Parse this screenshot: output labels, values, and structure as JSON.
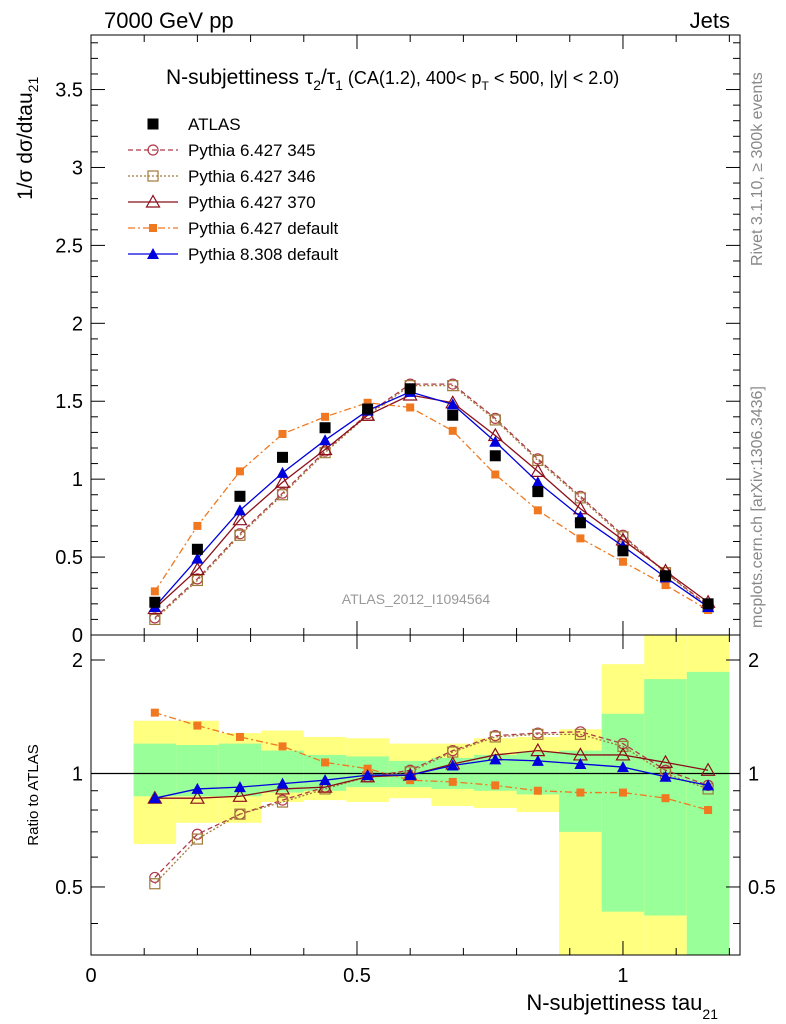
{
  "header": {
    "left": "7000 GeV pp",
    "right": "Jets"
  },
  "side_labels": {
    "rivet": "Rivet 3.1.10, ≥ 300k events",
    "mcplots": "mcplots.cern.ch [arXiv:1306.3436]"
  },
  "chart_data": [
    {
      "type": "line",
      "panel": "main",
      "title": {
        "main": "N-subjettiness τ",
        "tau2_sub": "2",
        "slash": "/τ",
        "tau1_sub": "1",
        "cuts_a": " (CA(1.2), 400< p",
        "pt_sub": "T",
        "cuts_b": " < 500, |y| < 2.0)"
      },
      "ylabel": {
        "base": "1/σ dσ/dtau",
        "sub": "21"
      },
      "watermark": "ATLAS_2012_I1094564",
      "xlim": [
        0,
        1.22
      ],
      "ylim": [
        0,
        3.85
      ],
      "yticks": [
        0,
        0.5,
        1,
        1.5,
        2,
        2.5,
        3,
        3.5
      ],
      "ytick_labels": [
        "0",
        "0.5",
        "1",
        "1.5",
        "2",
        "2.5",
        "3",
        "3.5"
      ],
      "legend_placement": "top-left",
      "x": [
        0.12,
        0.2,
        0.28,
        0.36,
        0.44,
        0.52,
        0.6,
        0.68,
        0.76,
        0.84,
        0.92,
        1.0,
        1.08,
        1.16
      ],
      "series": [
        {
          "name": "ATLAS",
          "color": "#000000",
          "marker": "square-filled",
          "line": "none",
          "values": [
            0.21,
            0.55,
            0.89,
            1.14,
            1.33,
            1.45,
            1.58,
            1.41,
            1.15,
            0.92,
            0.72,
            0.54,
            0.38,
            0.2
          ]
        },
        {
          "name": "Pythia 6.427 345",
          "color": "#b03a4a",
          "marker": "circle-open",
          "line": "dashed",
          "values": [
            0.11,
            0.36,
            0.65,
            0.91,
            1.18,
            1.42,
            1.61,
            1.61,
            1.39,
            1.13,
            0.89,
            0.64,
            0.4,
            0.19
          ]
        },
        {
          "name": "Pythia 6.427 346",
          "color": "#a07a3a",
          "marker": "square-open",
          "line": "dotted",
          "values": [
            0.1,
            0.35,
            0.64,
            0.9,
            1.17,
            1.41,
            1.6,
            1.6,
            1.38,
            1.12,
            0.88,
            0.63,
            0.4,
            0.18
          ]
        },
        {
          "name": "Pythia 6.427 370",
          "color": "#8b0f1a",
          "marker": "triangle-open",
          "line": "solid",
          "values": [
            0.17,
            0.42,
            0.74,
            0.98,
            1.19,
            1.41,
            1.54,
            1.49,
            1.28,
            1.05,
            0.81,
            0.61,
            0.41,
            0.21
          ]
        },
        {
          "name": "Pythia 6.427 default",
          "color": "#f07820",
          "marker": "square-small-filled",
          "line": "dashdot",
          "values": [
            0.28,
            0.7,
            1.05,
            1.29,
            1.4,
            1.49,
            1.46,
            1.31,
            1.03,
            0.8,
            0.62,
            0.47,
            0.32,
            0.16
          ]
        },
        {
          "name": "Pythia 8.308 default",
          "color": "#0000dd",
          "marker": "triangle-filled",
          "line": "solid",
          "values": [
            0.18,
            0.49,
            0.8,
            1.04,
            1.25,
            1.44,
            1.56,
            1.48,
            1.24,
            0.98,
            0.76,
            0.57,
            0.37,
            0.18
          ]
        }
      ]
    },
    {
      "type": "line",
      "panel": "ratio",
      "xlabel": {
        "base": "N-subjettiness tau",
        "sub": "21"
      },
      "ylabel": "Ratio to ATLAS",
      "xlim": [
        0,
        1.22
      ],
      "ylim": [
        0.33,
        2.33
      ],
      "xticks": [
        0,
        0.5,
        1
      ],
      "xtick_labels": [
        "0",
        "0.5",
        "1"
      ],
      "yticks": [
        0.5,
        1,
        2
      ],
      "ytick_labels": [
        "0.5",
        "1",
        "2"
      ],
      "reference_line": 1,
      "bins": [
        {
          "lo": 0.08,
          "hi": 0.16,
          "yellow": [
            0.65,
            1.38
          ],
          "green": [
            0.87,
            1.2
          ]
        },
        {
          "lo": 0.16,
          "hi": 0.24,
          "yellow": [
            0.74,
            1.38
          ],
          "green": [
            0.87,
            1.19
          ]
        },
        {
          "lo": 0.24,
          "hi": 0.32,
          "yellow": [
            0.74,
            1.28
          ],
          "green": [
            0.87,
            1.2
          ]
        },
        {
          "lo": 0.32,
          "hi": 0.4,
          "yellow": [
            0.84,
            1.3
          ],
          "green": [
            0.89,
            1.15
          ]
        },
        {
          "lo": 0.4,
          "hi": 0.48,
          "yellow": [
            0.85,
            1.25
          ],
          "green": [
            0.9,
            1.12
          ]
        },
        {
          "lo": 0.48,
          "hi": 0.56,
          "yellow": [
            0.84,
            1.24
          ],
          "green": [
            0.92,
            1.11
          ]
        },
        {
          "lo": 0.56,
          "hi": 0.64,
          "yellow": [
            0.86,
            1.2
          ],
          "green": [
            0.92,
            1.08
          ]
        },
        {
          "lo": 0.64,
          "hi": 0.72,
          "yellow": [
            0.82,
            1.2
          ],
          "green": [
            0.91,
            1.1
          ]
        },
        {
          "lo": 0.72,
          "hi": 0.8,
          "yellow": [
            0.81,
            1.24
          ],
          "green": [
            0.9,
            1.12
          ]
        },
        {
          "lo": 0.8,
          "hi": 0.88,
          "yellow": [
            0.79,
            1.25
          ],
          "green": [
            0.88,
            1.14
          ]
        },
        {
          "lo": 0.88,
          "hi": 0.96,
          "yellow": [
            0.33,
            1.31
          ],
          "green": [
            0.7,
            1.15
          ]
        },
        {
          "lo": 0.96,
          "hi": 1.04,
          "yellow": [
            0.33,
            1.95
          ],
          "green": [
            0.43,
            1.44
          ]
        },
        {
          "lo": 1.04,
          "hi": 1.12,
          "yellow": [
            0.33,
            2.33
          ],
          "green": [
            0.42,
            1.78
          ]
        },
        {
          "lo": 1.12,
          "hi": 1.2,
          "yellow": [
            0.33,
            2.33
          ],
          "green": [
            0.33,
            1.86
          ]
        }
      ],
      "x": [
        0.12,
        0.2,
        0.28,
        0.36,
        0.44,
        0.52,
        0.6,
        0.68,
        0.76,
        0.84,
        0.92,
        1.0,
        1.08,
        1.16
      ],
      "series": [
        {
          "name": "Pythia 6.427 345",
          "color": "#b03a4a",
          "marker": "circle-open",
          "line": "dashed",
          "values": [
            0.53,
            0.69,
            0.78,
            0.85,
            0.92,
            0.98,
            1.02,
            1.15,
            1.26,
            1.28,
            1.29,
            1.2,
            1.02,
            0.93
          ]
        },
        {
          "name": "Pythia 6.427 346",
          "color": "#a07a3a",
          "marker": "square-open",
          "line": "dotted",
          "values": [
            0.51,
            0.67,
            0.78,
            0.84,
            0.91,
            0.98,
            1.01,
            1.14,
            1.25,
            1.27,
            1.27,
            1.18,
            1.0,
            0.91
          ]
        },
        {
          "name": "Pythia 6.427 370",
          "color": "#8b0f1a",
          "marker": "triangle-open",
          "line": "solid",
          "values": [
            0.86,
            0.86,
            0.87,
            0.91,
            0.92,
            0.98,
            0.99,
            1.06,
            1.12,
            1.15,
            1.12,
            1.12,
            1.07,
            1.02
          ]
        },
        {
          "name": "Pythia 6.427 default",
          "color": "#f07820",
          "marker": "square-small-filled",
          "line": "dashdot",
          "values": [
            1.45,
            1.34,
            1.25,
            1.18,
            1.07,
            1.03,
            0.96,
            0.95,
            0.93,
            0.9,
            0.89,
            0.89,
            0.86,
            0.8
          ]
        },
        {
          "name": "Pythia 8.308 default",
          "color": "#0000dd",
          "marker": "triangle-filled",
          "line": "solid",
          "values": [
            0.86,
            0.91,
            0.92,
            0.94,
            0.96,
            0.99,
            0.99,
            1.05,
            1.09,
            1.08,
            1.06,
            1.04,
            0.98,
            0.93
          ]
        }
      ]
    }
  ]
}
